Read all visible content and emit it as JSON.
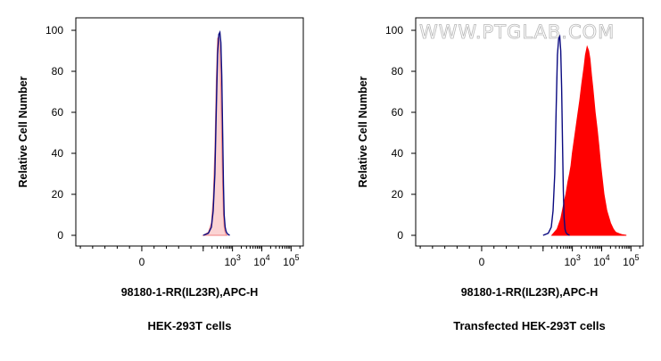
{
  "chart_data": [
    {
      "type": "area",
      "xlabel": "98180-1-RR(IL23R),APC-H",
      "ylabel": "Relative Cell Number",
      "caption": "HEK-293T cells",
      "x_scale": "logicle",
      "xlim": [
        -100,
        200000
      ],
      "ylim": [
        0,
        100
      ],
      "y_ticks": [
        "0",
        "20",
        "40",
        "60",
        "80",
        "100"
      ],
      "x_ticks": [
        {
          "value": 0,
          "base": "0",
          "exp": ""
        },
        {
          "value": 1000,
          "base": "10",
          "exp": "3"
        },
        {
          "value": 10000,
          "base": "10",
          "exp": "4"
        },
        {
          "value": 100000,
          "base": "10",
          "exp": "5"
        }
      ],
      "series": [
        {
          "role": "control",
          "color": "#0a0a80",
          "style": "line",
          "x": [
            100,
            150,
            190,
            220,
            250,
            280,
            310,
            340,
            370,
            400,
            430,
            460,
            490,
            520,
            560,
            600,
            650,
            720,
            800
          ],
          "y": [
            0,
            1,
            4,
            12,
            30,
            62,
            88,
            98,
            99,
            94,
            78,
            50,
            25,
            10,
            4,
            2,
            1,
            0.4,
            0
          ]
        },
        {
          "role": "sample",
          "color": "#f08080",
          "fill": "#fbd3d3",
          "style": "filled",
          "x": [
            100,
            150,
            190,
            220,
            250,
            280,
            310,
            340,
            370,
            400,
            430,
            460,
            490,
            520,
            560,
            600,
            650
          ],
          "y": [
            0,
            1.5,
            6,
            18,
            42,
            76,
            96,
            97,
            90,
            72,
            46,
            24,
            10,
            4,
            1.5,
            0.5,
            0
          ]
        }
      ]
    },
    {
      "type": "area",
      "xlabel": "98180-1-RR(IL23R),APC-H",
      "ylabel": "Relative Cell Number",
      "caption": "Transfected HEK-293T cells",
      "x_scale": "logicle",
      "xlim": [
        -100,
        200000
      ],
      "ylim": [
        0,
        100
      ],
      "y_ticks": [
        "0",
        "20",
        "40",
        "60",
        "80",
        "100"
      ],
      "x_ticks": [
        {
          "value": 0,
          "base": "0",
          "exp": ""
        },
        {
          "value": 1000,
          "base": "10",
          "exp": "3"
        },
        {
          "value": 10000,
          "base": "10",
          "exp": "4"
        },
        {
          "value": 100000,
          "base": "10",
          "exp": "5"
        }
      ],
      "series": [
        {
          "role": "control",
          "color": "#0a0a80",
          "style": "line",
          "x": [
            100,
            150,
            190,
            220,
            250,
            280,
            310,
            340,
            370,
            400,
            430,
            460,
            490,
            520,
            560,
            600,
            650,
            720,
            800
          ],
          "y": [
            0,
            1,
            4,
            12,
            30,
            62,
            88,
            96,
            97,
            90,
            72,
            45,
            22,
            9,
            3,
            1.5,
            0.8,
            0.3,
            0
          ]
        },
        {
          "role": "sample",
          "color": "#ff0000",
          "fill": "#ff0000",
          "style": "filled",
          "x": [
            200,
            300,
            400,
            500,
            600,
            700,
            800,
            900,
            1000,
            1200,
            1500,
            1800,
            2100,
            2500,
            2800,
            3200,
            3600,
            4000,
            4500,
            5000,
            6000,
            7000,
            8000,
            9000,
            10000,
            12000,
            15000,
            20000,
            25000,
            30000,
            40000,
            50000,
            70000
          ],
          "y": [
            0,
            3,
            8,
            15,
            20,
            26,
            30,
            34,
            40,
            48,
            58,
            66,
            74,
            82,
            88,
            92,
            90,
            86,
            78,
            72,
            60,
            52,
            44,
            36,
            30,
            20,
            12,
            6,
            3,
            1.5,
            0.8,
            0.3,
            0
          ]
        }
      ]
    }
  ],
  "watermark": "WWW.PTGLAB.COM"
}
